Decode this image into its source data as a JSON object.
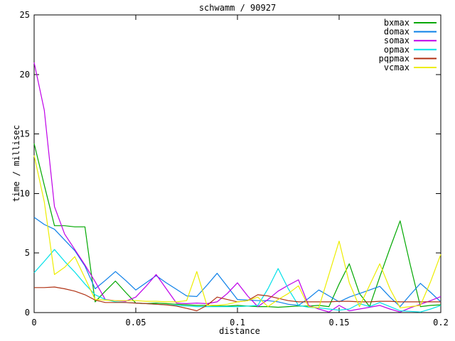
{
  "window": {
    "background": "#ffffff",
    "axis_color": "#000000"
  },
  "chart_data": {
    "type": "line",
    "title": "schwamm / 90927",
    "xlabel": "distance",
    "ylabel": "time / millisec",
    "xlim": [
      0,
      0.2
    ],
    "ylim": [
      0,
      25
    ],
    "xticks": [
      0,
      0.05,
      0.1,
      0.15,
      0.2
    ],
    "xtick_labels": [
      "0",
      "0.05",
      "0.1",
      "0.15",
      "0.2"
    ],
    "yticks": [
      0,
      5,
      10,
      15,
      20,
      25
    ],
    "ytick_labels": [
      "0",
      "5",
      "10",
      "15",
      "20",
      "25"
    ],
    "grid": false,
    "legend_position": "top-right-inside",
    "x": [
      0,
      0.005,
      0.01,
      0.015,
      0.02,
      0.025,
      0.03,
      0.035,
      0.04,
      0.045,
      0.05,
      0.055,
      0.06,
      0.065,
      0.07,
      0.075,
      0.08,
      0.085,
      0.09,
      0.095,
      0.1,
      0.105,
      0.11,
      0.115,
      0.12,
      0.125,
      0.13,
      0.135,
      0.14,
      0.145,
      0.15,
      0.155,
      0.16,
      0.165,
      0.17,
      0.175,
      0.18,
      0.185,
      0.19,
      0.195,
      0.2
    ],
    "series": [
      {
        "name": "bxmax",
        "color": "#00a800",
        "values": [
          14.2,
          10.7,
          7.3,
          7.3,
          7.2,
          7.2,
          0.9,
          1.8,
          2.65,
          1.7,
          0.8,
          0.75,
          0.8,
          0.75,
          0.7,
          0.65,
          0.6,
          0.6,
          0.55,
          0.55,
          0.6,
          0.55,
          0.5,
          0.5,
          0.45,
          0.5,
          0.55,
          0.55,
          0.6,
          0.5,
          2.4,
          4.1,
          1.6,
          0.5,
          3.0,
          5.4,
          7.7,
          4.0,
          0.5,
          0.6,
          0.65
        ]
      },
      {
        "name": "domax",
        "color": "#0d80e8",
        "values": [
          8.0,
          7.4,
          7.0,
          6.1,
          5.2,
          3.9,
          2.0,
          2.7,
          3.45,
          2.7,
          1.9,
          2.5,
          3.1,
          2.5,
          1.95,
          1.4,
          1.35,
          2.3,
          3.3,
          2.2,
          1.1,
          1.05,
          1.0,
          1.0,
          0.9,
          0.7,
          0.6,
          1.2,
          1.9,
          1.4,
          0.9,
          1.3,
          1.6,
          1.9,
          2.2,
          1.3,
          0.5,
          1.5,
          2.45,
          1.7,
          0.9
        ]
      },
      {
        "name": "somax",
        "color": "#bf00e8",
        "values": [
          21.0,
          17.0,
          8.9,
          6.6,
          5.3,
          4.0,
          2.6,
          1.1,
          1.0,
          0.95,
          1.3,
          2.2,
          3.2,
          2.0,
          0.8,
          0.75,
          0.8,
          0.75,
          0.9,
          1.6,
          2.5,
          1.4,
          0.5,
          1.1,
          1.8,
          2.3,
          2.75,
          0.6,
          0.3,
          0.05,
          0.6,
          0.15,
          0.3,
          0.45,
          0.6,
          0.3,
          0.05,
          0.4,
          0.7,
          1.0,
          1.35
        ]
      },
      {
        "name": "opmax",
        "color": "#00e0e8",
        "values": [
          3.35,
          4.3,
          5.3,
          4.3,
          3.4,
          2.4,
          1.5,
          1.1,
          0.9,
          0.85,
          0.8,
          0.75,
          0.7,
          0.65,
          0.6,
          0.55,
          0.5,
          0.5,
          0.5,
          0.5,
          0.5,
          0.55,
          0.6,
          2.0,
          3.7,
          2.0,
          0.6,
          0.45,
          0.4,
          0.3,
          0.2,
          0.3,
          0.75,
          0.5,
          0.85,
          0.5,
          0.15,
          0.1,
          0.05,
          0.3,
          0.6
        ]
      },
      {
        "name": "pqpmax",
        "color": "#b03214",
        "values": [
          2.1,
          2.1,
          2.15,
          2.0,
          1.8,
          1.5,
          1.05,
          0.85,
          0.85,
          0.85,
          0.8,
          0.75,
          0.7,
          0.65,
          0.55,
          0.35,
          0.15,
          0.6,
          1.3,
          1.1,
          0.9,
          1.0,
          1.5,
          1.4,
          1.2,
          1.0,
          0.9,
          0.9,
          0.9,
          0.9,
          0.95,
          0.95,
          0.9,
          0.9,
          0.95,
          0.95,
          0.9,
          0.9,
          0.9,
          0.9,
          0.9
        ]
      },
      {
        "name": "vcmax",
        "color": "#eded00",
        "values": [
          13.2,
          9.3,
          3.2,
          3.8,
          4.7,
          2.9,
          1.1,
          1.05,
          1.0,
          1.0,
          1.0,
          0.95,
          0.95,
          0.9,
          0.9,
          1.0,
          3.45,
          0.6,
          0.6,
          0.7,
          0.9,
          1.0,
          1.3,
          0.5,
          1.1,
          1.6,
          2.25,
          0.5,
          0.4,
          3.2,
          6.0,
          2.5,
          0.5,
          2.3,
          4.1,
          2.0,
          0.4,
          0.5,
          0.6,
          2.6,
          4.9
        ]
      }
    ]
  }
}
